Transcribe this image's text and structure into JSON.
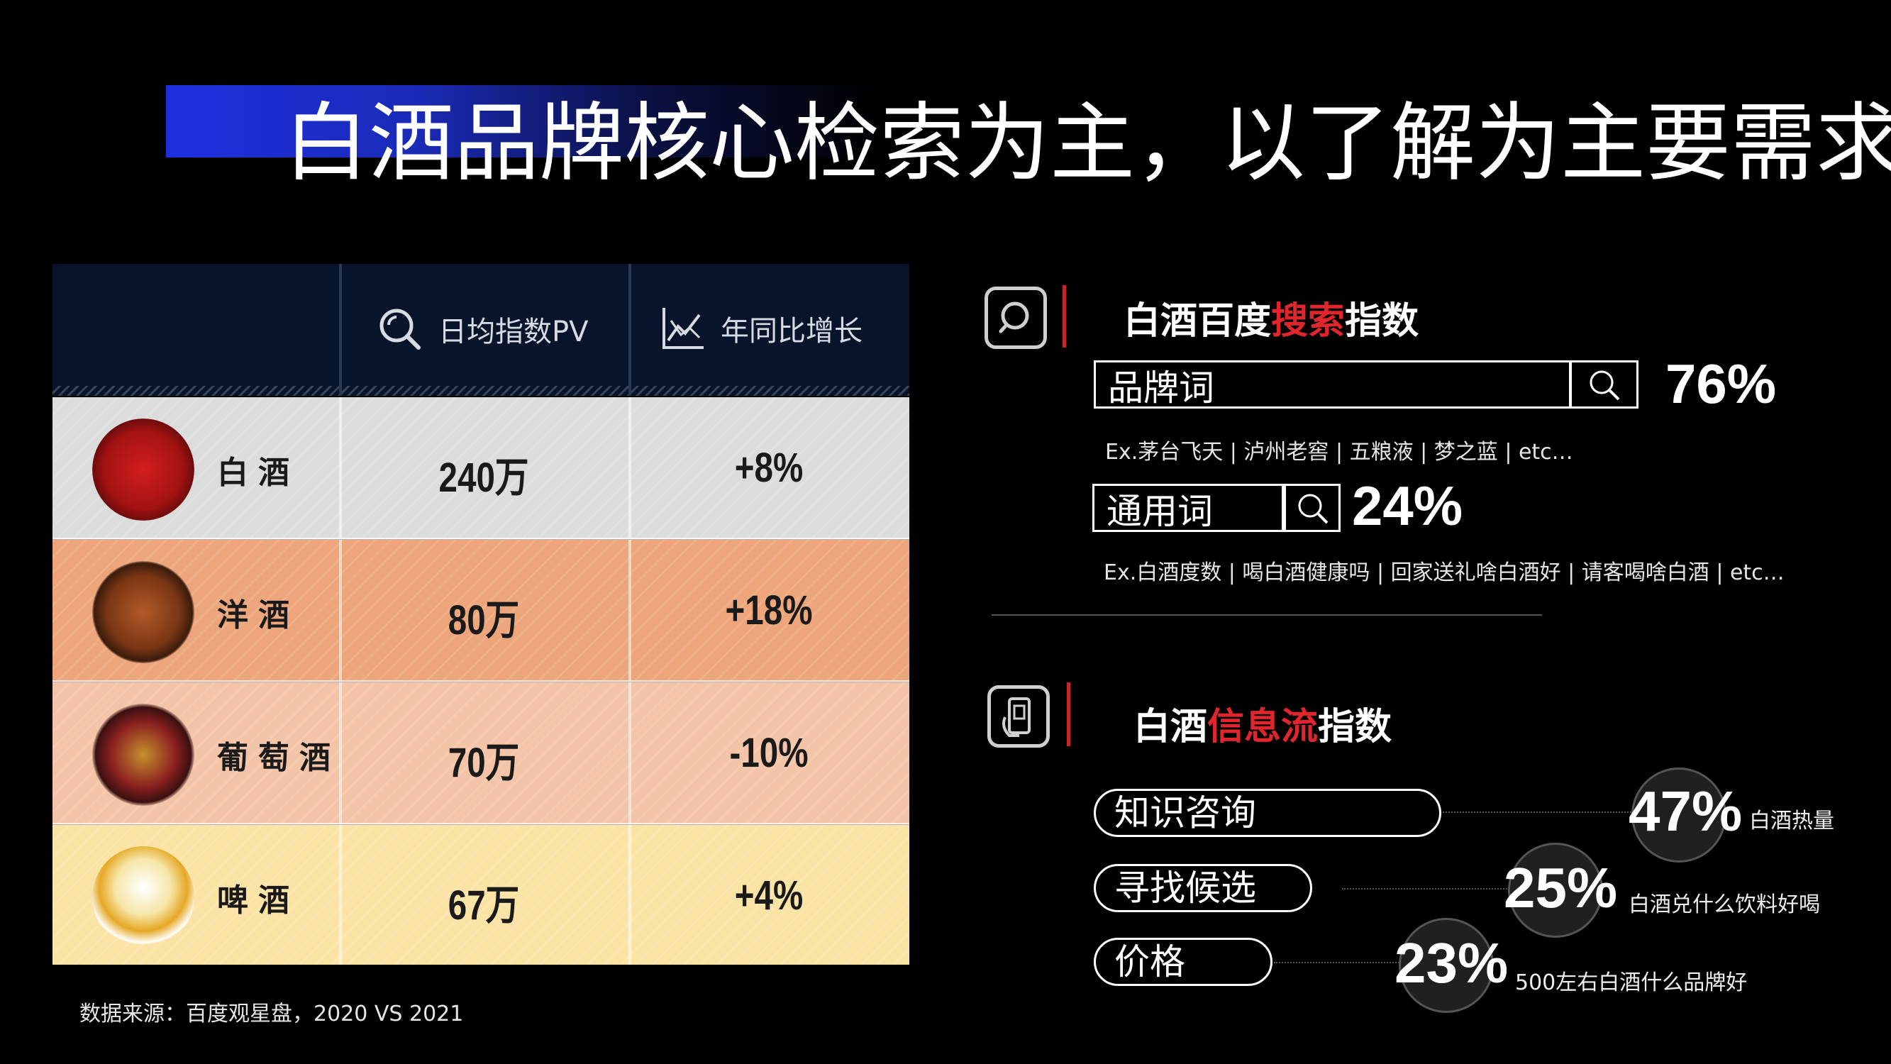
{
  "title": "白酒品牌核心检索为主，以了解为主要需求",
  "table": {
    "header": {
      "pv_label": "日均指数PV",
      "growth_label": "年同比增长"
    },
    "rows": [
      {
        "drink": "白酒",
        "pv": "240万",
        "growth": "+8%",
        "bg": "#dcdcdc"
      },
      {
        "drink": "洋酒",
        "pv": "80万",
        "growth": "+18%",
        "bg": "#eda67b"
      },
      {
        "drink": "葡萄酒",
        "pv": "70万",
        "growth": "-10%",
        "bg": "#f4c4a8"
      },
      {
        "drink": "啤酒",
        "pv": "67万",
        "growth": "+4%",
        "bg": "#fbe3a6"
      }
    ]
  },
  "source": "数据来源：百度观星盘，2020 VS 2021",
  "search": {
    "title_prefix": "白酒百度",
    "title_highlight": "搜索",
    "title_suffix": "指数",
    "brand_label": "品牌词",
    "brand_pct": "76%",
    "brand_examples": "Ex.茅台飞天 | 泸州老窖 | 五粮液 | 梦之蓝 | etc…",
    "generic_label": "通用词",
    "generic_pct": "24%",
    "generic_examples": "Ex.白酒度数 | 喝白酒健康吗 | 回家送礼啥白酒好 | 请客喝啥白酒 | etc…"
  },
  "feed": {
    "title_prefix": "白酒",
    "title_highlight": "信息流",
    "title_suffix": "指数",
    "items": [
      {
        "label": "知识咨询",
        "pct": "47%",
        "note": "白酒热量"
      },
      {
        "label": "寻找候选",
        "pct": "25%",
        "note": "白酒兑什么饮料好喝"
      },
      {
        "label": "价格",
        "pct": "23%",
        "note": "500左右白酒什么品牌好"
      }
    ]
  },
  "colors": {
    "accent_blue": "#1e2fe0",
    "accent_red": "#e0252c",
    "header_navy": "#08142a"
  }
}
